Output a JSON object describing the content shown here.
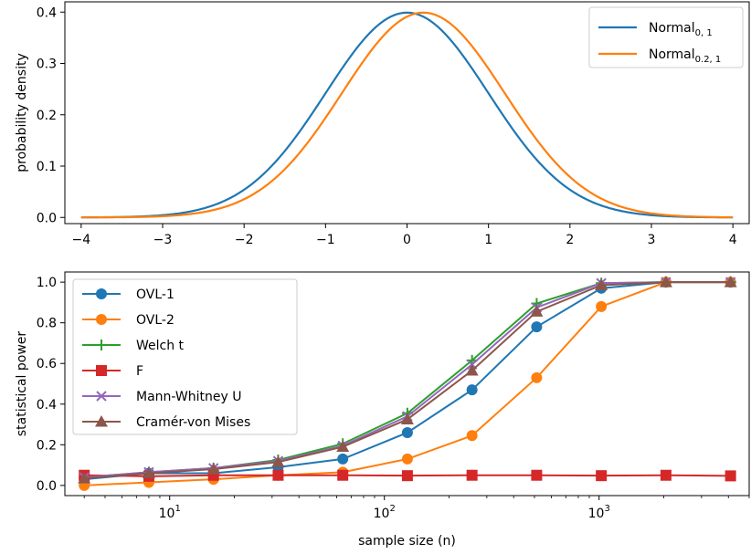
{
  "chart_data": [
    {
      "type": "line",
      "xlabel": "",
      "ylabel": "probability density",
      "xlim": [
        -4.2,
        4.2
      ],
      "ylim": [
        -0.012,
        0.42
      ],
      "xticks": [
        -4,
        -3,
        -2,
        -1,
        0,
        1,
        2,
        3,
        4
      ],
      "yticks": [
        0.0,
        0.1,
        0.2,
        0.3,
        0.4
      ],
      "xtick_labels": [
        "−4",
        "−3",
        "−2",
        "−1",
        "0",
        "1",
        "2",
        "3",
        "4"
      ],
      "ytick_labels": [
        "0.0",
        "0.1",
        "0.2",
        "0.3",
        "0.4"
      ],
      "grid": false,
      "legend_position": "top-right",
      "series": [
        {
          "name": "Normal",
          "subscript": "0, 1",
          "mean": 0,
          "sd": 1,
          "color": "#1f77b4",
          "x_range": [
            -4,
            4
          ]
        },
        {
          "name": "Normal",
          "subscript": "0.2, 1",
          "mean": 0.2,
          "sd": 1,
          "color": "#ff7f0e",
          "x_range": [
            -4,
            4
          ]
        }
      ]
    },
    {
      "type": "line",
      "xscale": "log",
      "xlabel": "sample size (n)",
      "ylabel": "statistical power",
      "xlim": [
        3.25,
        5000
      ],
      "ylim": [
        -0.05,
        1.05
      ],
      "xticks": [
        10,
        100,
        1000
      ],
      "xtick_labels": [
        {
          "base": "10",
          "exp": "1"
        },
        {
          "base": "10",
          "exp": "2"
        },
        {
          "base": "10",
          "exp": "3"
        }
      ],
      "yticks": [
        0.0,
        0.2,
        0.4,
        0.6,
        0.8,
        1.0
      ],
      "ytick_labels": [
        "0.0",
        "0.2",
        "0.4",
        "0.6",
        "0.8",
        "1.0"
      ],
      "grid": false,
      "legend_position": "top-left",
      "x": [
        4,
        8,
        16,
        32,
        64,
        128,
        256,
        512,
        1024,
        2048,
        4096
      ],
      "series": [
        {
          "name": "OVL-1",
          "marker": "circle",
          "color": "#1f77b4",
          "values": [
            0.03,
            0.06,
            0.06,
            0.09,
            0.13,
            0.26,
            0.47,
            0.78,
            0.97,
            1.0,
            1.0
          ]
        },
        {
          "name": "OVL-2",
          "marker": "circle",
          "color": "#ff7f0e",
          "values": [
            0.0,
            0.015,
            0.03,
            0.05,
            0.065,
            0.13,
            0.245,
            0.53,
            0.88,
            1.0,
            1.0
          ]
        },
        {
          "name": "Welch t",
          "marker": "plus",
          "color": "#2ca02c",
          "values": [
            0.04,
            0.065,
            0.085,
            0.125,
            0.205,
            0.355,
            0.615,
            0.895,
            0.995,
            1.0,
            1.0
          ]
        },
        {
          "name": "F",
          "marker": "square",
          "color": "#d62728",
          "values": [
            0.05,
            0.045,
            0.05,
            0.05,
            0.05,
            0.048,
            0.05,
            0.05,
            0.048,
            0.05,
            0.047
          ]
        },
        {
          "name": "Mann-Whitney U",
          "marker": "x",
          "color": "#9467bd",
          "values": [
            0.04,
            0.065,
            0.085,
            0.12,
            0.195,
            0.34,
            0.595,
            0.875,
            0.995,
            1.0,
            1.0
          ]
        },
        {
          "name": "Cramér-von Mises",
          "marker": "triangle",
          "color": "#8c564b",
          "values": [
            0.035,
            0.06,
            0.08,
            0.115,
            0.19,
            0.325,
            0.565,
            0.855,
            0.985,
            1.0,
            1.0
          ]
        }
      ]
    }
  ]
}
